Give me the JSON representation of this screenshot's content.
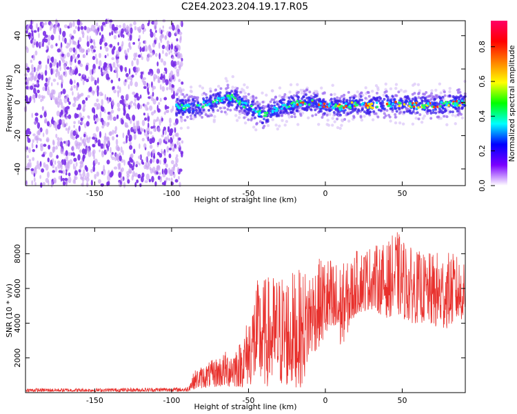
{
  "title": "C2E4.2023.204.19.17.R05",
  "colors": {
    "background": "#ffffff",
    "snr_line": "#e8302c",
    "scatter_sparse": "#7a2ee8",
    "scatter_light": "#c9a3f2"
  },
  "chart_data": [
    {
      "type": "heatmap",
      "xlabel": "Height of straight line (km)",
      "ylabel": "Frequency (Hz)",
      "xlim": [
        -195,
        91
      ],
      "ylim": [
        -50,
        49
      ],
      "x_ticks": [
        -150,
        -100,
        -50,
        0,
        50
      ],
      "y_ticks": [
        -40,
        -20,
        0,
        20,
        40
      ],
      "grid": false,
      "noise_region_x": [
        -195,
        -93
      ],
      "signal_band_x": [
        -97,
        91
      ],
      "signal_band_center_hz": [
        {
          "x": -97,
          "y": -3
        },
        {
          "x": -85,
          "y": -3
        },
        {
          "x": -70,
          "y": 1
        },
        {
          "x": -60,
          "y": 3
        },
        {
          "x": -55,
          "y": 0
        },
        {
          "x": -50,
          "y": -3
        },
        {
          "x": -45,
          "y": -5
        },
        {
          "x": -40,
          "y": -8
        },
        {
          "x": -30,
          "y": -3
        },
        {
          "x": -20,
          "y": -1
        },
        {
          "x": -10,
          "y": 0
        },
        {
          "x": 0,
          "y": -2
        },
        {
          "x": 10,
          "y": -3
        },
        {
          "x": 20,
          "y": -1
        },
        {
          "x": 30,
          "y": -2
        },
        {
          "x": 40,
          "y": -1
        },
        {
          "x": 50,
          "y": -1
        },
        {
          "x": 60,
          "y": -2
        },
        {
          "x": 70,
          "y": -2
        },
        {
          "x": 80,
          "y": -1
        },
        {
          "x": 91,
          "y": 0
        }
      ],
      "colorbar": {
        "label": "Normalized spectral amplitude",
        "range": [
          0,
          0.95
        ],
        "ticks": [
          "0.0",
          "0.2",
          "0.4",
          "0.6",
          "0.8"
        ],
        "tick_values": [
          0.0,
          0.2,
          0.4,
          0.6,
          0.8
        ],
        "colormap": [
          "#ffffff",
          "#7a00ff",
          "#0000ff",
          "#00ffff",
          "#00ff00",
          "#ffff00",
          "#ff8000",
          "#ff0000",
          "#ff0066"
        ]
      }
    },
    {
      "type": "line",
      "xlabel": "Height of straight line (km)",
      "ylabel": "SNR (10 * v/v)",
      "xlim": [
        -195,
        91
      ],
      "ylim": [
        0,
        9500
      ],
      "x_ticks": [
        -150,
        -100,
        -50,
        0,
        50
      ],
      "y_ticks": [
        2000,
        4000,
        6000,
        8000
      ],
      "grid": false,
      "series": [
        {
          "envelope": [
            {
              "x": -195,
              "low": 50,
              "high": 250
            },
            {
              "x": -150,
              "low": 50,
              "high": 250
            },
            {
              "x": -100,
              "low": 60,
              "high": 300
            },
            {
              "x": -90,
              "low": 60,
              "high": 300
            },
            {
              "x": -85,
              "low": 200,
              "high": 1300
            },
            {
              "x": -75,
              "low": 300,
              "high": 1800
            },
            {
              "x": -65,
              "low": 300,
              "high": 2400
            },
            {
              "x": -55,
              "low": 300,
              "high": 3000
            },
            {
              "x": -50,
              "low": 400,
              "high": 4500
            },
            {
              "x": -45,
              "low": 400,
              "high": 6500
            },
            {
              "x": -35,
              "low": 300,
              "high": 6800
            },
            {
              "x": -25,
              "low": 300,
              "high": 7000
            },
            {
              "x": -15,
              "low": 300,
              "high": 7100
            },
            {
              "x": -10,
              "low": 2000,
              "high": 7300
            },
            {
              "x": 0,
              "low": 3000,
              "high": 8000
            },
            {
              "x": 10,
              "low": 2500,
              "high": 7500
            },
            {
              "x": 15,
              "low": 3500,
              "high": 7500
            },
            {
              "x": 20,
              "low": 4500,
              "high": 8200
            },
            {
              "x": 30,
              "low": 4800,
              "high": 8500
            },
            {
              "x": 40,
              "low": 4300,
              "high": 8600
            },
            {
              "x": 46,
              "low": 4500,
              "high": 9400
            },
            {
              "x": 55,
              "low": 4000,
              "high": 8400
            },
            {
              "x": 65,
              "low": 4000,
              "high": 8000
            },
            {
              "x": 75,
              "low": 3500,
              "high": 8200
            },
            {
              "x": 85,
              "low": 4000,
              "high": 8000
            },
            {
              "x": 91,
              "low": 4300,
              "high": 7300
            }
          ]
        }
      ]
    }
  ]
}
